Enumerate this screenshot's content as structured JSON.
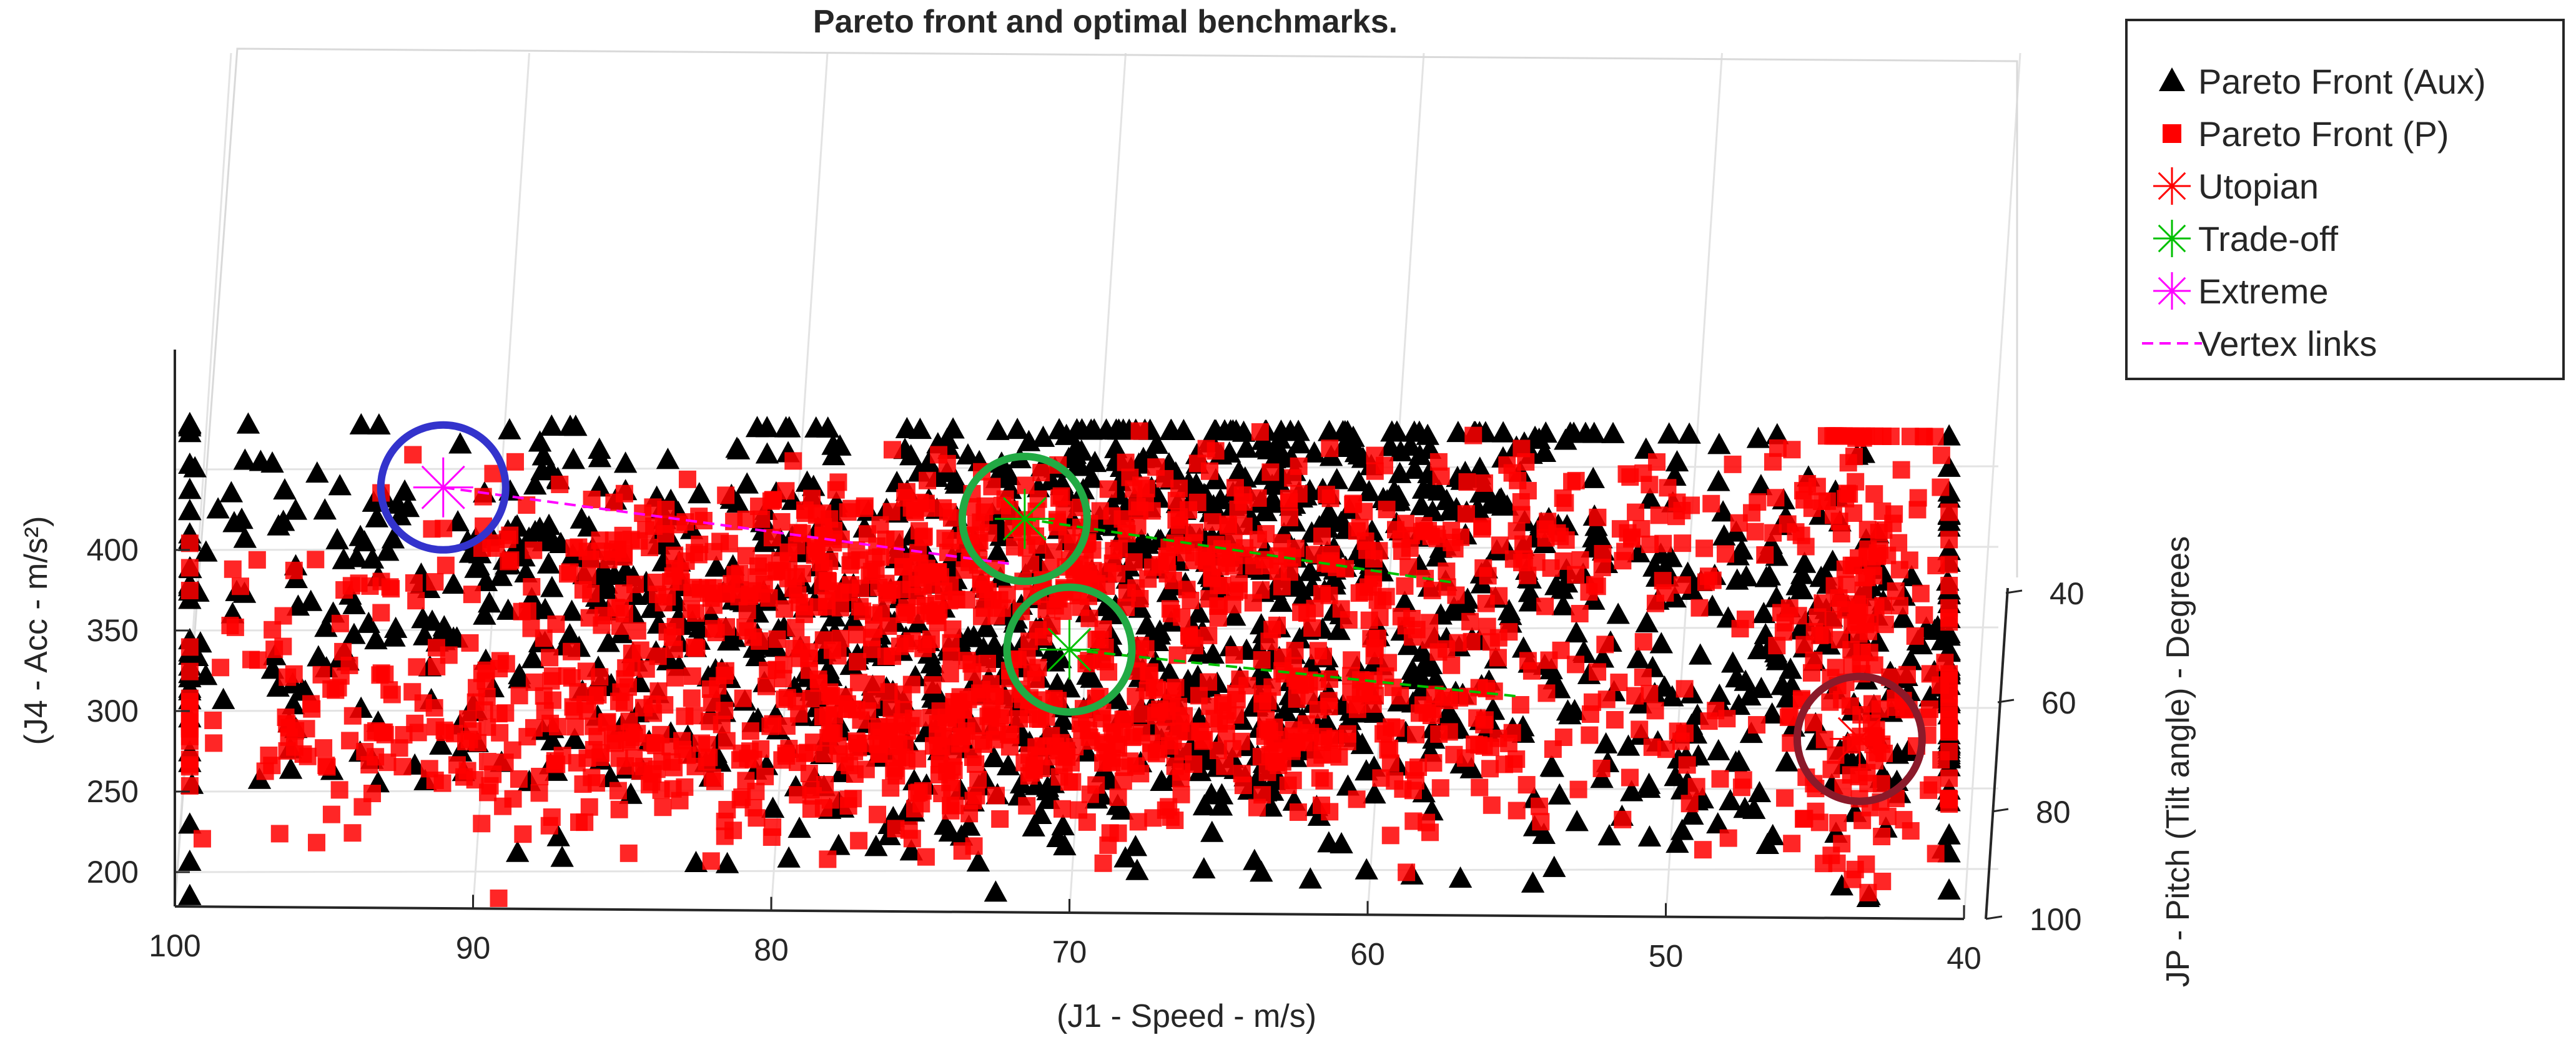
{
  "chart_data": {
    "type": "scatter",
    "title": "Pareto front and optimal benchmarks.",
    "xlabel": "(J1 - Speed - m/s)",
    "ylabel": "(J4 - Acc - m/s²)",
    "zlabel": "JP - Pitch (Tilt angle) - Degrees",
    "x_ticks": [
      "100",
      "90",
      "80",
      "70",
      "60",
      "50",
      "40"
    ],
    "y_ticks": [
      "200",
      "250",
      "300",
      "350",
      "400"
    ],
    "z_ticks": [
      "40",
      "60",
      "80",
      "100"
    ],
    "xlim": [
      40,
      100
    ],
    "ylim": [
      180,
      480
    ],
    "x_reversed": true,
    "grid": true,
    "legend_position": "top-right",
    "series": [
      {
        "name": "Pareto Front (Aux)",
        "marker": "triangle",
        "color": "#000000",
        "approx_points": 1600,
        "clusters": [
          [
            72,
            385,
            14,
            55,
            0.3
          ],
          [
            68,
            300,
            14,
            45,
            0.3
          ],
          [
            88,
            390,
            7,
            40,
            0.1
          ],
          [
            44,
            330,
            4,
            70,
            0.1
          ],
          [
            62,
            440,
            7,
            35,
            0.2
          ]
        ]
      },
      {
        "name": "Pareto Front (P)",
        "marker": "square",
        "color": "#ff0000",
        "approx_points": 1800,
        "clusters": [
          [
            74,
            395,
            10,
            28,
            0.3
          ],
          [
            68,
            295,
            12,
            32,
            0.35
          ],
          [
            85,
            290,
            8,
            35,
            0.15
          ],
          [
            56,
            420,
            7,
            30,
            0.1
          ],
          [
            43.5,
            340,
            1.5,
            90,
            0.1
          ]
        ]
      },
      {
        "name": "Utopian",
        "marker": "asterisk",
        "color": "#ff0000",
        "points": [
          [
            43.5,
            290
          ]
        ]
      },
      {
        "name": "Trade-off",
        "marker": "asterisk",
        "color": "#00c000",
        "points": [
          [
            71.5,
            423
          ],
          [
            70,
            342
          ]
        ]
      },
      {
        "name": "Extreme",
        "marker": "asterisk",
        "color": "#ff00ff",
        "points": [
          [
            91,
            440
          ]
        ]
      },
      {
        "name": "Vertex links",
        "marker": "dashed-line",
        "color": "#ff00ff"
      }
    ],
    "vertex_links": [
      {
        "color": "#ff00ff",
        "points": [
          [
            91,
            440
          ],
          [
            72,
            395
          ]
        ]
      },
      {
        "color": "#00c000",
        "points": [
          [
            71.5,
            423
          ],
          [
            57,
            385
          ]
        ]
      },
      {
        "color": "#00c000",
        "points": [
          [
            70,
            342
          ],
          [
            55,
            315
          ]
        ]
      }
    ],
    "highlight_circles": [
      {
        "center": [
          91,
          440
        ],
        "color": "#3333cc"
      },
      {
        "center": [
          71.5,
          423
        ],
        "color": "#22aa44"
      },
      {
        "center": [
          70,
          342
        ],
        "color": "#22aa44"
      },
      {
        "center": [
          43.5,
          290
        ],
        "color": "#8b1a2a"
      }
    ]
  }
}
